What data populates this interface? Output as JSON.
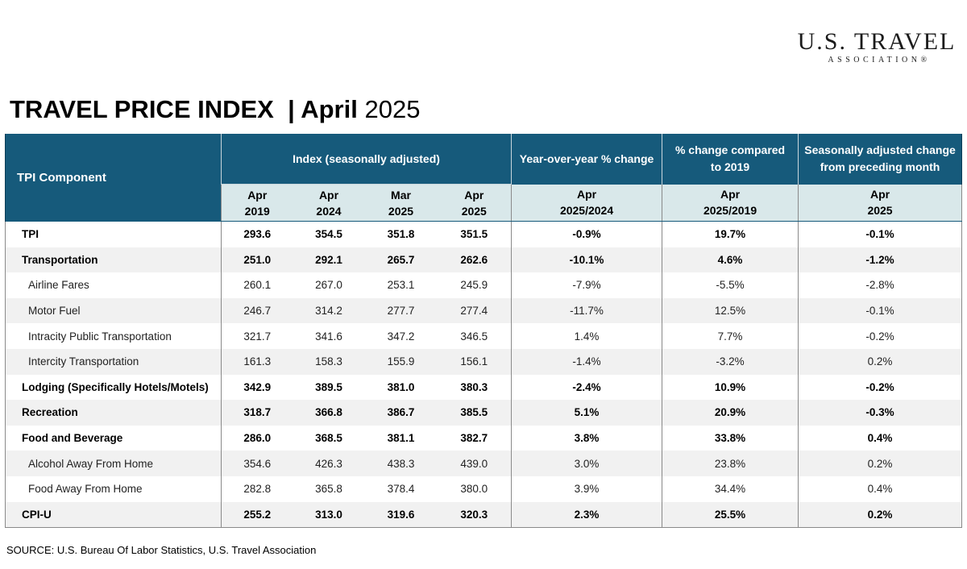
{
  "logo": {
    "top": "U.S. TRAVEL",
    "bottom": "ASSOCIATION®"
  },
  "title": {
    "main": "TRAVEL PRICE INDEX",
    "sep": "  | ",
    "month": "April",
    "year": "2025"
  },
  "table": {
    "component_header": "TPI Component",
    "index_header": "Index  (seasonally adjusted)",
    "yoy_header": "Year-over-year % change",
    "vs2019_header": "% change compared to 2019",
    "mom_header": "Seasonally adjusted change from preceding month",
    "sub_headers": [
      {
        "l1": "Apr",
        "l2": "2019"
      },
      {
        "l1": "Apr",
        "l2": "2024"
      },
      {
        "l1": "Mar",
        "l2": "2025"
      },
      {
        "l1": "Apr",
        "l2": "2025"
      },
      {
        "l1": "Apr",
        "l2": "2025/2024"
      },
      {
        "l1": "Apr",
        "l2": "2025/2019"
      },
      {
        "l1": "Apr",
        "l2": "2025"
      }
    ],
    "rows": [
      {
        "name": "TPI",
        "bold": true,
        "values": [
          "293.6",
          "354.5",
          "351.8",
          "351.5",
          "-0.9%",
          "19.7%",
          "-0.1%"
        ]
      },
      {
        "name": "Transportation",
        "bold": true,
        "values": [
          "251.0",
          "292.1",
          "265.7",
          "262.6",
          "-10.1%",
          "4.6%",
          "-1.2%"
        ]
      },
      {
        "name": "Airline Fares",
        "bold": false,
        "values": [
          "260.1",
          "267.0",
          "253.1",
          "245.9",
          "-7.9%",
          "-5.5%",
          "-2.8%"
        ]
      },
      {
        "name": "Motor Fuel",
        "bold": false,
        "values": [
          "246.7",
          "314.2",
          "277.7",
          "277.4",
          "-11.7%",
          "12.5%",
          "-0.1%"
        ]
      },
      {
        "name": "Intracity Public Transportation",
        "bold": false,
        "values": [
          "321.7",
          "341.6",
          "347.2",
          "346.5",
          "1.4%",
          "7.7%",
          "-0.2%"
        ]
      },
      {
        "name": "Intercity Transportation",
        "bold": false,
        "values": [
          "161.3",
          "158.3",
          "155.9",
          "156.1",
          "-1.4%",
          "-3.2%",
          "0.2%"
        ]
      },
      {
        "name": "Lodging (Specifically Hotels/Motels)",
        "bold": true,
        "values": [
          "342.9",
          "389.5",
          "381.0",
          "380.3",
          "-2.4%",
          "10.9%",
          "-0.2%"
        ]
      },
      {
        "name": "Recreation",
        "bold": true,
        "values": [
          "318.7",
          "366.8",
          "386.7",
          "385.5",
          "5.1%",
          "20.9%",
          "-0.3%"
        ]
      },
      {
        "name": "Food and Beverage",
        "bold": true,
        "values": [
          "286.0",
          "368.5",
          "381.1",
          "382.7",
          "3.8%",
          "33.8%",
          "0.4%"
        ]
      },
      {
        "name": "Alcohol Away From Home",
        "bold": false,
        "values": [
          "354.6",
          "426.3",
          "438.3",
          "439.0",
          "3.0%",
          "23.8%",
          "0.2%"
        ]
      },
      {
        "name": "Food Away From Home",
        "bold": false,
        "values": [
          "282.8",
          "365.8",
          "378.4",
          "380.0",
          "3.9%",
          "34.4%",
          "0.4%"
        ]
      },
      {
        "name": "CPI-U",
        "bold": true,
        "values": [
          "255.2",
          "313.0",
          "319.6",
          "320.3",
          "2.3%",
          "25.5%",
          "0.2%"
        ]
      }
    ]
  },
  "source": "SOURCE: U.S. Bureau Of Labor Statistics, U.S. Travel Association",
  "colors": {
    "header_bg": "#165a7b",
    "subheader_bg": "#d9e8ea",
    "alt_row_bg": "#f1f1f1"
  }
}
